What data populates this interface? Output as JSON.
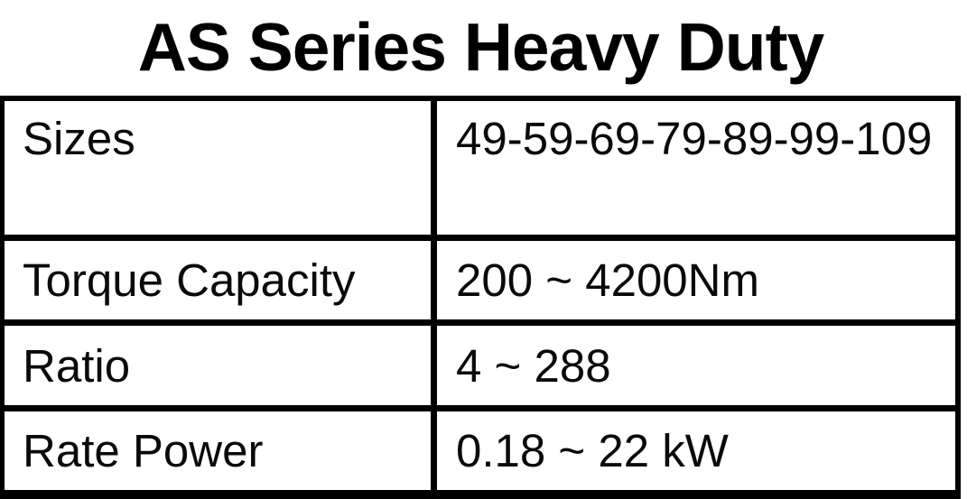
{
  "page": {
    "title": "AS Series Heavy Duty"
  },
  "colors": {
    "background": "#ffffff",
    "text": "#000000",
    "table_border": "#000000",
    "cell_background": "#ffffff"
  },
  "table": {
    "rows": [
      {
        "label": "Sizes",
        "value": "49-59-69-79-89-99-109"
      },
      {
        "label": "Torque Capacity",
        "value": "200 ~ 4200Nm"
      },
      {
        "label": "Ratio",
        "value": "4 ~ 288"
      },
      {
        "label": "Rate Power",
        "value": "0.18 ~ 22 kW"
      }
    ]
  }
}
